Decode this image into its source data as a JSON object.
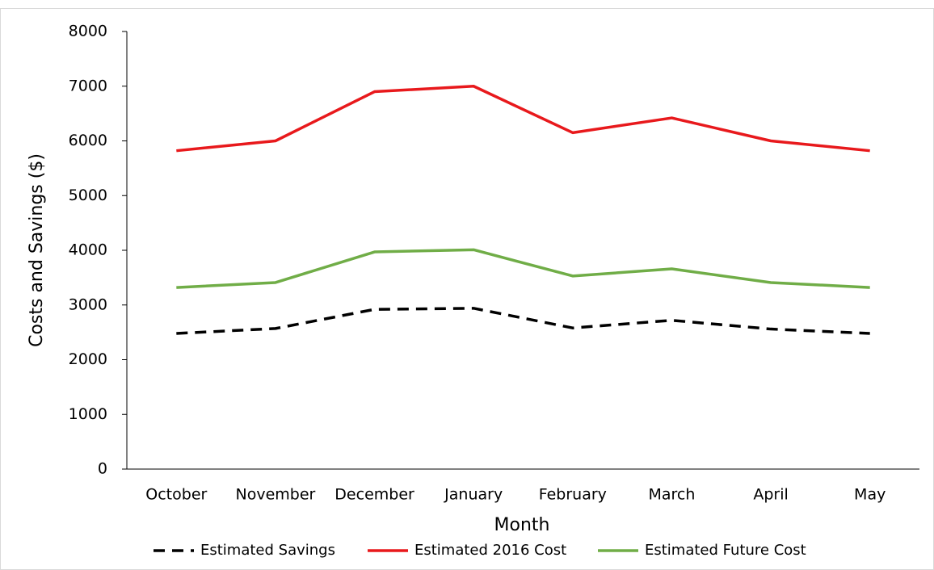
{
  "chart_data": {
    "type": "line",
    "xlabel": "Month",
    "ylabel": "Costs and Savings ($)",
    "categories": [
      "October",
      "November",
      "December",
      "January",
      "February",
      "March",
      "April",
      "May"
    ],
    "series": [
      {
        "name": "Estimated Savings",
        "color": "#000000",
        "dashed": true,
        "values": [
          2480,
          2570,
          2920,
          2940,
          2580,
          2720,
          2560,
          2480
        ]
      },
      {
        "name": "Estimated 2016 Cost",
        "color": "#e8191c",
        "dashed": false,
        "values": [
          5820,
          6000,
          6900,
          7000,
          6150,
          6420,
          6000,
          5820
        ]
      },
      {
        "name": "Estimated Future Cost",
        "color": "#70ad47",
        "dashed": false,
        "values": [
          3320,
          3410,
          3970,
          4010,
          3530,
          3660,
          3410,
          3320
        ]
      }
    ],
    "ylim": [
      0,
      8000
    ],
    "yticks": [
      0,
      1000,
      2000,
      3000,
      4000,
      5000,
      6000,
      7000,
      8000
    ],
    "grid": false,
    "legend": "bottom"
  }
}
